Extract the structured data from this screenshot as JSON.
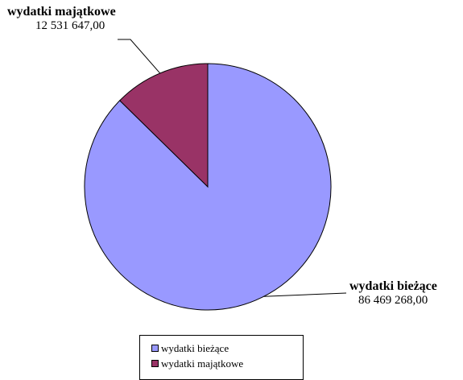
{
  "chart_data": {
    "type": "pie",
    "series": [
      {
        "name": "wydatki bieżące",
        "value": 86469268.0,
        "label": "86 469 268,00",
        "color": "#9999ff"
      },
      {
        "name": "wydatki majątkowe",
        "value": 12531647.0,
        "label": "12 531 647,00",
        "color": "#993366"
      }
    ],
    "legend": {
      "position": "bottom",
      "items": [
        "wydatki bieżące",
        "wydatki majątkowe"
      ]
    },
    "title": ""
  }
}
